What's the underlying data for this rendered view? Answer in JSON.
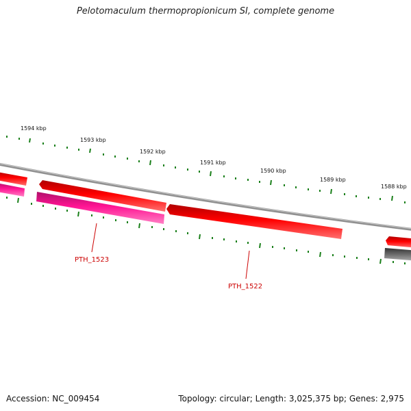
{
  "title": "Pelotomaculum thermopropionicum SI, complete genome",
  "scale": {
    "labels": [
      "1594 kbp",
      "1593 kbp",
      "1592 kbp",
      "1591 kbp",
      "1590 kbp",
      "1589 kbp",
      "1588 kbp"
    ]
  },
  "genes": [
    {
      "id": "gene-1",
      "label": "",
      "strand": "forward",
      "color": "#ff0000"
    },
    {
      "id": "gene-2",
      "label": "",
      "strand": "forward",
      "color": "#ff0000"
    },
    {
      "id": "gene-3",
      "label": "",
      "strand": "forward",
      "color": "#ff0000"
    },
    {
      "id": "gene-4",
      "label": "",
      "strand": "forward",
      "color": "#ff0000"
    },
    {
      "id": "gene-5",
      "label": "",
      "strand": "reverse",
      "color": "#ff1493"
    },
    {
      "id": "gene-6",
      "label": "PTH_1523",
      "strand": "reverse",
      "color": "#ff1493"
    },
    {
      "id": "gene-7",
      "label": "",
      "strand": "reverse",
      "color": "#555555"
    }
  ],
  "callouts": [
    {
      "label": "PTH_1523"
    },
    {
      "label": "PTH_1522"
    }
  ],
  "colors": {
    "forward_gene": "#ff0000",
    "reverse_gene": "#ff1493",
    "rna_gene": "#555555",
    "tick": "#1a7f1a",
    "backbone": "#888888",
    "callout": "#cc0000"
  },
  "footer": {
    "accession": "Accession: NC_009454",
    "summary": "Topology: circular; Length: 3,025,375 bp; Genes: 2,975"
  }
}
